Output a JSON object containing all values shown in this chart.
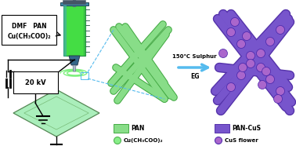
{
  "bg_color": "#ffffff",
  "syringe_barrel_color": "#44dd44",
  "syringe_barrel_edge": "#228844",
  "syringe_cap_color": "#4488aa",
  "syringe_tip_color": "#336688",
  "needle_color": "#888888",
  "plunger_color": "#555555",
  "grad_color": "#225544",
  "fiber_green_color": "#88dd88",
  "fiber_green_edge": "#44aa44",
  "fiber_purple_color": "#7755cc",
  "fiber_purple_edge": "#5533aa",
  "cus_flower_color": "#aa66cc",
  "arrow_color": "#55bbee",
  "box_text_line1": "DMF   PAN",
  "box_text_line2": "Cu(CH₃COO)₂",
  "voltage_text": "20 kV",
  "reaction_line1": "150℃ Sulphur",
  "reaction_line2": "EG",
  "legend_pan": "PAN",
  "legend_cu": "Cu(CH₃COO)₂",
  "legend_pancus": "PAN-CuS",
  "legend_cus": "CuS flower",
  "plate_color": "#aaeebb",
  "plate_edge": "#558855",
  "spiral_color": "#66ee66",
  "figsize": [
    3.78,
    1.86
  ],
  "dpi": 100
}
